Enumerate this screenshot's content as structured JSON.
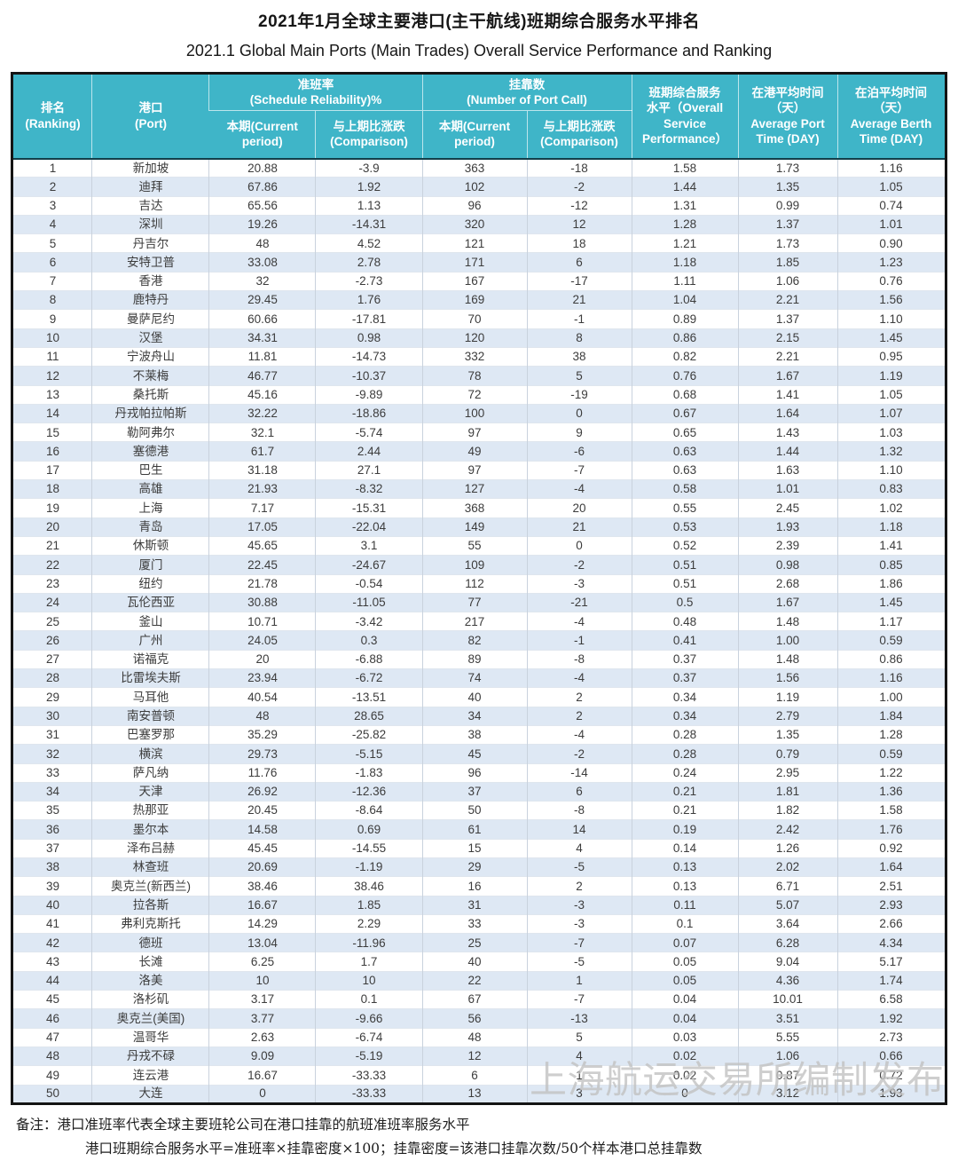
{
  "title": {
    "zh": "2021年1月全球主要港口(主干航线)班期综合服务水平排名",
    "en": "2021.1 Global Main Ports (Main Trades) Overall Service Performance and Ranking"
  },
  "colors": {
    "header_bg": "#3fb5c8",
    "header_text": "#ffffff",
    "stripe": "#dee8f4",
    "outer_border": "#141414",
    "watermark": "#c2c2c2"
  },
  "table": {
    "header": {
      "ranking": "排名\n(Ranking)",
      "port": "港口\n(Port)",
      "reliability_group": "准班率\n(Schedule Reliability)%",
      "calls_group": "挂靠数\n(Number of Port Call)",
      "current": "本期(Current\nperiod)",
      "comparison": "与上期比涨跌\n(Comparison)",
      "overall": "班期综合服务\n水平（Overall\nService\nPerformance）",
      "port_time": "在港平均时间\n（天）\nAverage Port\nTime (DAY)",
      "berth_time": "在泊平均时间\n（天）\nAverage Berth\nTime (DAY)"
    },
    "rows": [
      [
        "1",
        "新加坡",
        "20.88",
        "-3.9",
        "363",
        "-18",
        "1.58",
        "1.73",
        "1.16"
      ],
      [
        "2",
        "迪拜",
        "67.86",
        "1.92",
        "102",
        "-2",
        "1.44",
        "1.35",
        "1.05"
      ],
      [
        "3",
        "吉达",
        "65.56",
        "1.13",
        "96",
        "-12",
        "1.31",
        "0.99",
        "0.74"
      ],
      [
        "4",
        "深圳",
        "19.26",
        "-14.31",
        "320",
        "12",
        "1.28",
        "1.37",
        "1.01"
      ],
      [
        "5",
        "丹吉尔",
        "48",
        "4.52",
        "121",
        "18",
        "1.21",
        "1.73",
        "0.90"
      ],
      [
        "6",
        "安特卫普",
        "33.08",
        "2.78",
        "171",
        "6",
        "1.18",
        "1.85",
        "1.23"
      ],
      [
        "7",
        "香港",
        "32",
        "-2.73",
        "167",
        "-17",
        "1.11",
        "1.06",
        "0.76"
      ],
      [
        "8",
        "鹿特丹",
        "29.45",
        "1.76",
        "169",
        "21",
        "1.04",
        "2.21",
        "1.56"
      ],
      [
        "9",
        "曼萨尼约",
        "60.66",
        "-17.81",
        "70",
        "-1",
        "0.89",
        "1.37",
        "1.10"
      ],
      [
        "10",
        "汉堡",
        "34.31",
        "0.98",
        "120",
        "8",
        "0.86",
        "2.15",
        "1.45"
      ],
      [
        "11",
        "宁波舟山",
        "11.81",
        "-14.73",
        "332",
        "38",
        "0.82",
        "2.21",
        "0.95"
      ],
      [
        "12",
        "不莱梅",
        "46.77",
        "-10.37",
        "78",
        "5",
        "0.76",
        "1.67",
        "1.19"
      ],
      [
        "13",
        "桑托斯",
        "45.16",
        "-9.89",
        "72",
        "-19",
        "0.68",
        "1.41",
        "1.05"
      ],
      [
        "14",
        "丹戎帕拉帕斯",
        "32.22",
        "-18.86",
        "100",
        "0",
        "0.67",
        "1.64",
        "1.07"
      ],
      [
        "15",
        "勒阿弗尔",
        "32.1",
        "-5.74",
        "97",
        "9",
        "0.65",
        "1.43",
        "1.03"
      ],
      [
        "16",
        "塞德港",
        "61.7",
        "2.44",
        "49",
        "-6",
        "0.63",
        "1.44",
        "1.32"
      ],
      [
        "17",
        "巴生",
        "31.18",
        "27.1",
        "97",
        "-7",
        "0.63",
        "1.63",
        "1.10"
      ],
      [
        "18",
        "高雄",
        "21.93",
        "-8.32",
        "127",
        "-4",
        "0.58",
        "1.01",
        "0.83"
      ],
      [
        "19",
        "上海",
        "7.17",
        "-15.31",
        "368",
        "20",
        "0.55",
        "2.45",
        "1.02"
      ],
      [
        "20",
        "青岛",
        "17.05",
        "-22.04",
        "149",
        "21",
        "0.53",
        "1.93",
        "1.18"
      ],
      [
        "21",
        "休斯顿",
        "45.65",
        "3.1",
        "55",
        "0",
        "0.52",
        "2.39",
        "1.41"
      ],
      [
        "22",
        "厦门",
        "22.45",
        "-24.67",
        "109",
        "-2",
        "0.51",
        "0.98",
        "0.85"
      ],
      [
        "23",
        "纽约",
        "21.78",
        "-0.54",
        "112",
        "-3",
        "0.51",
        "2.68",
        "1.86"
      ],
      [
        "24",
        "瓦伦西亚",
        "30.88",
        "-11.05",
        "77",
        "-21",
        "0.5",
        "1.67",
        "1.45"
      ],
      [
        "25",
        "釜山",
        "10.71",
        "-3.42",
        "217",
        "-4",
        "0.48",
        "1.48",
        "1.17"
      ],
      [
        "26",
        "广州",
        "24.05",
        "0.3",
        "82",
        "-1",
        "0.41",
        "1.00",
        "0.59"
      ],
      [
        "27",
        "诺福克",
        "20",
        "-6.88",
        "89",
        "-8",
        "0.37",
        "1.48",
        "0.86"
      ],
      [
        "28",
        "比雷埃夫斯",
        "23.94",
        "-6.72",
        "74",
        "-4",
        "0.37",
        "1.56",
        "1.16"
      ],
      [
        "29",
        "马耳他",
        "40.54",
        "-13.51",
        "40",
        "2",
        "0.34",
        "1.19",
        "1.00"
      ],
      [
        "30",
        "南安普顿",
        "48",
        "28.65",
        "34",
        "2",
        "0.34",
        "2.79",
        "1.84"
      ],
      [
        "31",
        "巴塞罗那",
        "35.29",
        "-25.82",
        "38",
        "-4",
        "0.28",
        "1.35",
        "1.28"
      ],
      [
        "32",
        "横滨",
        "29.73",
        "-5.15",
        "45",
        "-2",
        "0.28",
        "0.79",
        "0.59"
      ],
      [
        "33",
        "萨凡纳",
        "11.76",
        "-1.83",
        "96",
        "-14",
        "0.24",
        "2.95",
        "1.22"
      ],
      [
        "34",
        "天津",
        "26.92",
        "-12.36",
        "37",
        "6",
        "0.21",
        "1.81",
        "1.36"
      ],
      [
        "35",
        "热那亚",
        "20.45",
        "-8.64",
        "50",
        "-8",
        "0.21",
        "1.82",
        "1.58"
      ],
      [
        "36",
        "墨尔本",
        "14.58",
        "0.69",
        "61",
        "14",
        "0.19",
        "2.42",
        "1.76"
      ],
      [
        "37",
        "泽布吕赫",
        "45.45",
        "-14.55",
        "15",
        "4",
        "0.14",
        "1.26",
        "0.92"
      ],
      [
        "38",
        "林查班",
        "20.69",
        "-1.19",
        "29",
        "-5",
        "0.13",
        "2.02",
        "1.64"
      ],
      [
        "39",
        "奥克兰(新西兰)",
        "38.46",
        "38.46",
        "16",
        "2",
        "0.13",
        "6.71",
        "2.51"
      ],
      [
        "40",
        "拉各斯",
        "16.67",
        "1.85",
        "31",
        "-3",
        "0.11",
        "5.07",
        "2.93"
      ],
      [
        "41",
        "弗利克斯托",
        "14.29",
        "2.29",
        "33",
        "-3",
        "0.1",
        "3.64",
        "2.66"
      ],
      [
        "42",
        "德班",
        "13.04",
        "-11.96",
        "25",
        "-7",
        "0.07",
        "6.28",
        "4.34"
      ],
      [
        "43",
        "长滩",
        "6.25",
        "1.7",
        "40",
        "-5",
        "0.05",
        "9.04",
        "5.17"
      ],
      [
        "44",
        "洛美",
        "10",
        "10",
        "22",
        "1",
        "0.05",
        "4.36",
        "1.74"
      ],
      [
        "45",
        "洛杉矶",
        "3.17",
        "0.1",
        "67",
        "-7",
        "0.04",
        "10.01",
        "6.58"
      ],
      [
        "46",
        "奥克兰(美国)",
        "3.77",
        "-9.66",
        "56",
        "-13",
        "0.04",
        "3.51",
        "1.92"
      ],
      [
        "47",
        "温哥华",
        "2.63",
        "-6.74",
        "48",
        "5",
        "0.03",
        "5.55",
        "2.73"
      ],
      [
        "48",
        "丹戎不碌",
        "9.09",
        "-5.19",
        "12",
        "4",
        "0.02",
        "1.06",
        "0.66"
      ],
      [
        "49",
        "连云港",
        "16.67",
        "-33.33",
        "6",
        "1",
        "0.02",
        "0.87",
        "0.72"
      ],
      [
        "50",
        "大连",
        "0",
        "-33.33",
        "13",
        "3",
        "0",
        "3.12",
        "1.93"
      ]
    ]
  },
  "watermark": "上海航运交易所编制发布",
  "notes": {
    "line1": "备注：港口准班率代表全球主要班轮公司在港口挂靠的航班准班率服务水平",
    "line2": "港口班期综合服务水平=准班率×挂靠密度×100；挂靠密度=该港口挂靠次数/50个样本港口总挂靠数"
  }
}
